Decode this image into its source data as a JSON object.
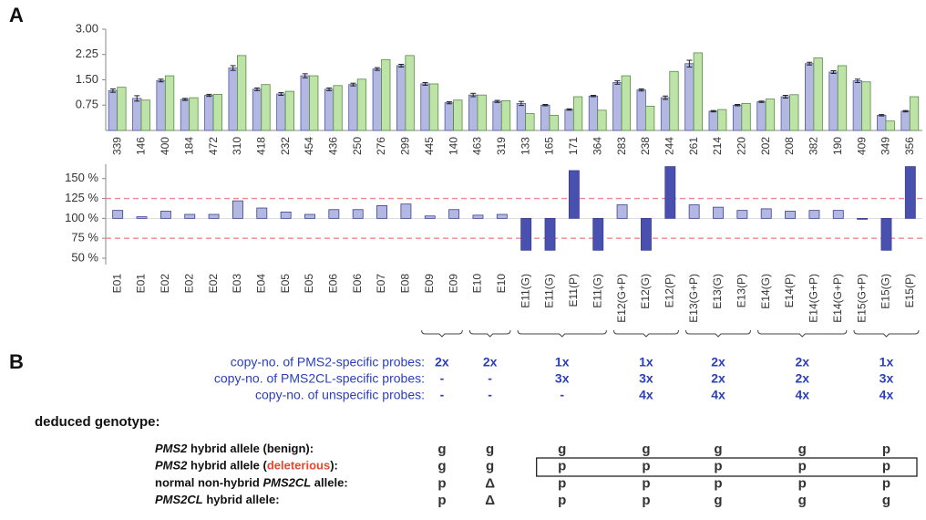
{
  "panel_a_label": "A",
  "chart_data": [
    {
      "type": "bar",
      "categories": [
        "339",
        "146",
        "400",
        "184",
        "472",
        "310",
        "418",
        "232",
        "454",
        "436",
        "250",
        "276",
        "299",
        "445",
        "140",
        "463",
        "319",
        "133",
        "165",
        "171",
        "364",
        "283",
        "238",
        "244",
        "261",
        "214",
        "220",
        "202",
        "208",
        "382",
        "190",
        "409",
        "349",
        "356"
      ],
      "series": [
        {
          "color": "#b3b8e2",
          "stroke": "#535a9e",
          "values": [
            1.18,
            0.95,
            1.48,
            0.92,
            1.04,
            1.85,
            1.22,
            1.08,
            1.62,
            1.22,
            1.36,
            1.82,
            1.92,
            1.38,
            0.82,
            1.05,
            0.86,
            0.8,
            0.75,
            0.62,
            1.02,
            1.42,
            1.2,
            0.97,
            1.98,
            0.57,
            0.75,
            0.85,
            1.0,
            1.98,
            1.73,
            1.47,
            0.45,
            0.57
          ],
          "errors": [
            0.05,
            0.08,
            0.04,
            0.03,
            0.03,
            0.07,
            0.04,
            0.04,
            0.06,
            0.04,
            0.04,
            0.04,
            0.04,
            0.04,
            0.03,
            0.05,
            0.03,
            0.06,
            0.02,
            0.02,
            0.02,
            0.05,
            0.03,
            0.05,
            0.1,
            0.02,
            0.02,
            0.02,
            0.04,
            0.04,
            0.04,
            0.05,
            0.02,
            0.02
          ]
        },
        {
          "color": "#bde3a6",
          "stroke": "#5c8a4c",
          "values": [
            1.28,
            0.9,
            1.62,
            0.97,
            1.07,
            2.22,
            1.36,
            1.16,
            1.62,
            1.33,
            1.52,
            2.1,
            2.22,
            1.38,
            0.9,
            1.05,
            0.88,
            0.5,
            0.45,
            1.0,
            0.6,
            1.62,
            0.72,
            1.75,
            2.3,
            0.62,
            0.8,
            0.93,
            1.06,
            2.15,
            1.92,
            1.44,
            0.28,
            1.0
          ]
        }
      ],
      "ylim": [
        0,
        3
      ],
      "yticks": [
        {
          "value": 0.75,
          "label": "0.75"
        },
        {
          "value": 1.5,
          "label": "1.50"
        },
        {
          "value": 2.25,
          "label": "2.25"
        },
        {
          "value": 3,
          "label": "3.00"
        }
      ]
    },
    {
      "type": "ratio-bar",
      "categories": [
        "E01",
        "E01",
        "E02",
        "E02",
        "E02",
        "E03",
        "E04",
        "E05",
        "E05",
        "E06",
        "E06",
        "E07",
        "E08",
        "E09",
        "E09",
        "E10",
        "E10",
        "E11(G)",
        "E11(G)",
        "E11(P)",
        "E11(G)",
        "E12(G+P)",
        "E12(G)",
        "E12(P)",
        "E13(G+P)",
        "E13(G)",
        "E13(P)",
        "E14(G)",
        "E14(P)",
        "E14(G+P)",
        "E14(G+P)",
        "E15(G+P)",
        "E15(G)",
        "E15(P)"
      ],
      "values": [
        110,
        102,
        109,
        105,
        105,
        122,
        113,
        108,
        105,
        111,
        111,
        116,
        118,
        103,
        111,
        104,
        105,
        60,
        60,
        160,
        60,
        117,
        60,
        165,
        117,
        114,
        110,
        112,
        109,
        110,
        110,
        99,
        60,
        165
      ],
      "colors": [
        "#b3b8e2",
        "#b3b8e2",
        "#b3b8e2",
        "#b3b8e2",
        "#b3b8e2",
        "#b3b8e2",
        "#b3b8e2",
        "#b3b8e2",
        "#b3b8e2",
        "#b3b8e2",
        "#b3b8e2",
        "#b3b8e2",
        "#b3b8e2",
        "#b3b8e2",
        "#b3b8e2",
        "#b3b8e2",
        "#b3b8e2",
        "#4a50b0",
        "#4a50b0",
        "#4a50b0",
        "#4a50b0",
        "#b3b8e2",
        "#4a50b0",
        "#4a50b0",
        "#b3b8e2",
        "#b3b8e2",
        "#b3b8e2",
        "#b3b8e2",
        "#b3b8e2",
        "#b3b8e2",
        "#b3b8e2",
        "#4a50b0",
        "#4a50b0",
        "#4a50b0"
      ],
      "baseline": 100,
      "thresholds": [
        75,
        125
      ],
      "threshold_color": "#f08a8a",
      "ylim": [
        42,
        168
      ],
      "yticks": [
        {
          "value": 50,
          "label": "50 %"
        },
        {
          "value": 75,
          "label": "75 %"
        },
        {
          "value": 100,
          "label": "100 %"
        },
        {
          "value": 125,
          "label": "125 %"
        },
        {
          "value": 150,
          "label": "150 %"
        }
      ]
    }
  ],
  "panel_b": {
    "label": "B",
    "copy_rows": [
      {
        "label": "copy-no. of PMS2-specific probes:",
        "values": [
          "2x",
          "2x",
          "1x",
          "1x",
          "2x",
          "2x",
          "1x"
        ]
      },
      {
        "label": "copy-no. of PMS2CL-specific probes:",
        "values": [
          "-",
          "-",
          "3x",
          "3x",
          "2x",
          "2x",
          "3x"
        ]
      },
      {
        "label": "copy-no. of  unspecific probes:",
        "values": [
          "-",
          "-",
          "-",
          "4x",
          "4x",
          "4x",
          "4x"
        ]
      }
    ],
    "genotype_title": "deduced genotype:",
    "genotype_rows": [
      {
        "label": [
          {
            "text": "PMS2",
            "italic": true
          },
          {
            "text": " hybrid allele (benign):"
          }
        ],
        "values": [
          "g",
          "g",
          "g",
          "g",
          "g",
          "g",
          "p"
        ]
      },
      {
        "label": [
          {
            "text": "PMS2",
            "italic": true
          },
          {
            "text": " hybrid allele ("
          },
          {
            "text": "deleterious",
            "color": "#e8472e"
          },
          {
            "text": "):"
          }
        ],
        "values": [
          "g",
          "g",
          "p",
          "p",
          "p",
          "p",
          "p"
        ]
      },
      {
        "label": [
          {
            "text": "normal non-hybrid "
          },
          {
            "text": "PMS2CL",
            "italic": true
          },
          {
            "text": " allele:"
          }
        ],
        "values": [
          "p",
          "Δ",
          "p",
          "p",
          "p",
          "p",
          "p"
        ]
      },
      {
        "label": [
          {
            "text": "PMS2CL",
            "italic": true
          },
          {
            "text": " hybrid allele:"
          }
        ],
        "values": [
          "p",
          "Δ",
          "p",
          "p",
          "g",
          "g",
          "g"
        ]
      }
    ],
    "symbol_colors": {
      "g": "#1ba3a6",
      "p": "#ea4b2c",
      "Δ": "#222222"
    }
  }
}
